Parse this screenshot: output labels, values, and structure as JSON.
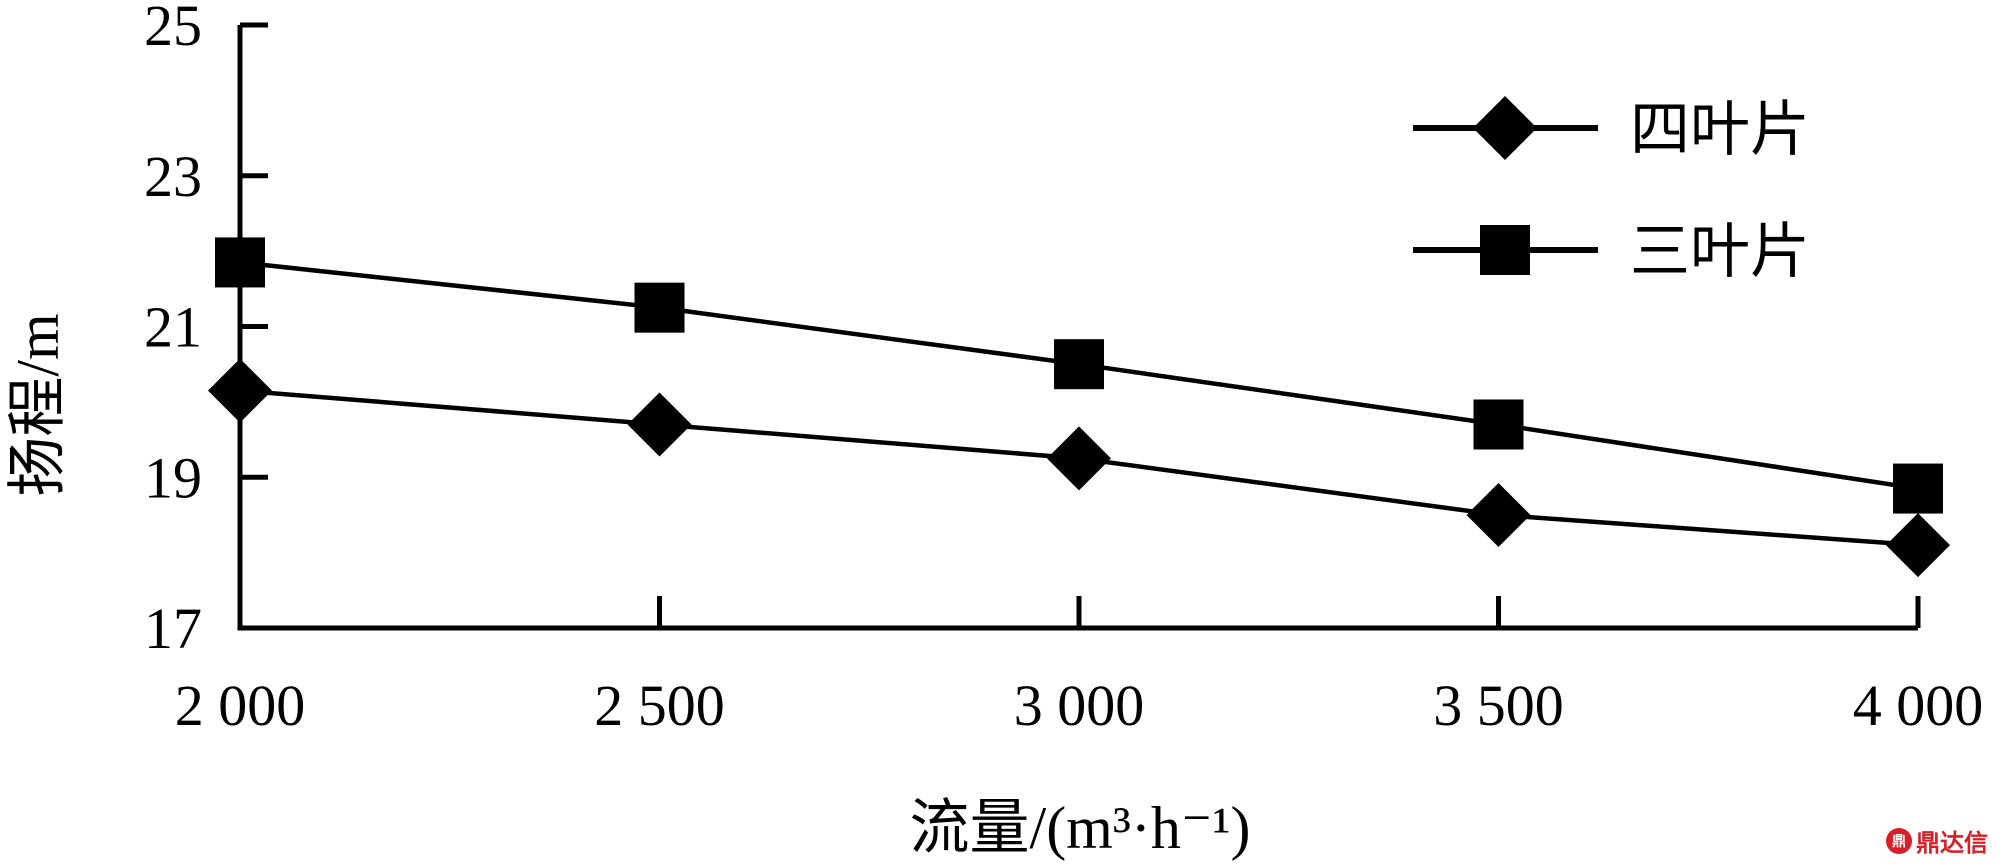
{
  "chart_data": {
    "type": "line",
    "xlabel": "流量/(m³·h⁻¹)",
    "ylabel": "扬程/m",
    "x": [
      2000,
      2500,
      3000,
      3500,
      4000
    ],
    "x_tick_labels": [
      "2 000",
      "2 500",
      "3 000",
      "3 500",
      "4 000"
    ],
    "xlim": [
      2000,
      4000
    ],
    "ylim": [
      17,
      25
    ],
    "y_ticks": [
      17,
      19,
      21,
      23,
      25
    ],
    "y_tick_labels": [
      "17",
      "19",
      "21",
      "23",
      "25"
    ],
    "grid": false,
    "legend_position": "top-right",
    "series": [
      {
        "name": "四叶片",
        "marker": "diamond",
        "color": "#000000",
        "values": [
          20.15,
          19.7,
          19.25,
          18.5,
          18.1
        ]
      },
      {
        "name": "三叶片",
        "marker": "square",
        "color": "#000000",
        "values": [
          21.85,
          21.25,
          20.5,
          19.7,
          18.85
        ]
      }
    ]
  },
  "watermark": {
    "icon_text": "鼎",
    "text": "鼎达信"
  }
}
